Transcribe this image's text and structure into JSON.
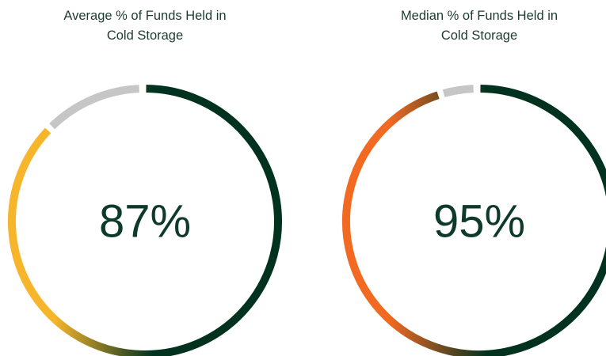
{
  "chart_data": [
    {
      "type": "gauge",
      "title": [
        "Average % of Funds Held in",
        "Cold Storage"
      ],
      "values": [
        87
      ],
      "value_labels": [
        "87%"
      ],
      "ylim": [
        0,
        100
      ],
      "colors": [
        "#f7b52c",
        "#00321f"
      ],
      "track_color": "#c6c6c6",
      "text_color": "#0e3a2b"
    },
    {
      "type": "gauge",
      "title": [
        "Median % of Funds Held in",
        "Cold Storage"
      ],
      "values": [
        95
      ],
      "value_labels": [
        "95%"
      ],
      "ylim": [
        0,
        100
      ],
      "colors": [
        "#f26a22",
        "#00321f"
      ],
      "track_color": "#c6c6c6",
      "text_color": "#0e3a2b"
    }
  ]
}
